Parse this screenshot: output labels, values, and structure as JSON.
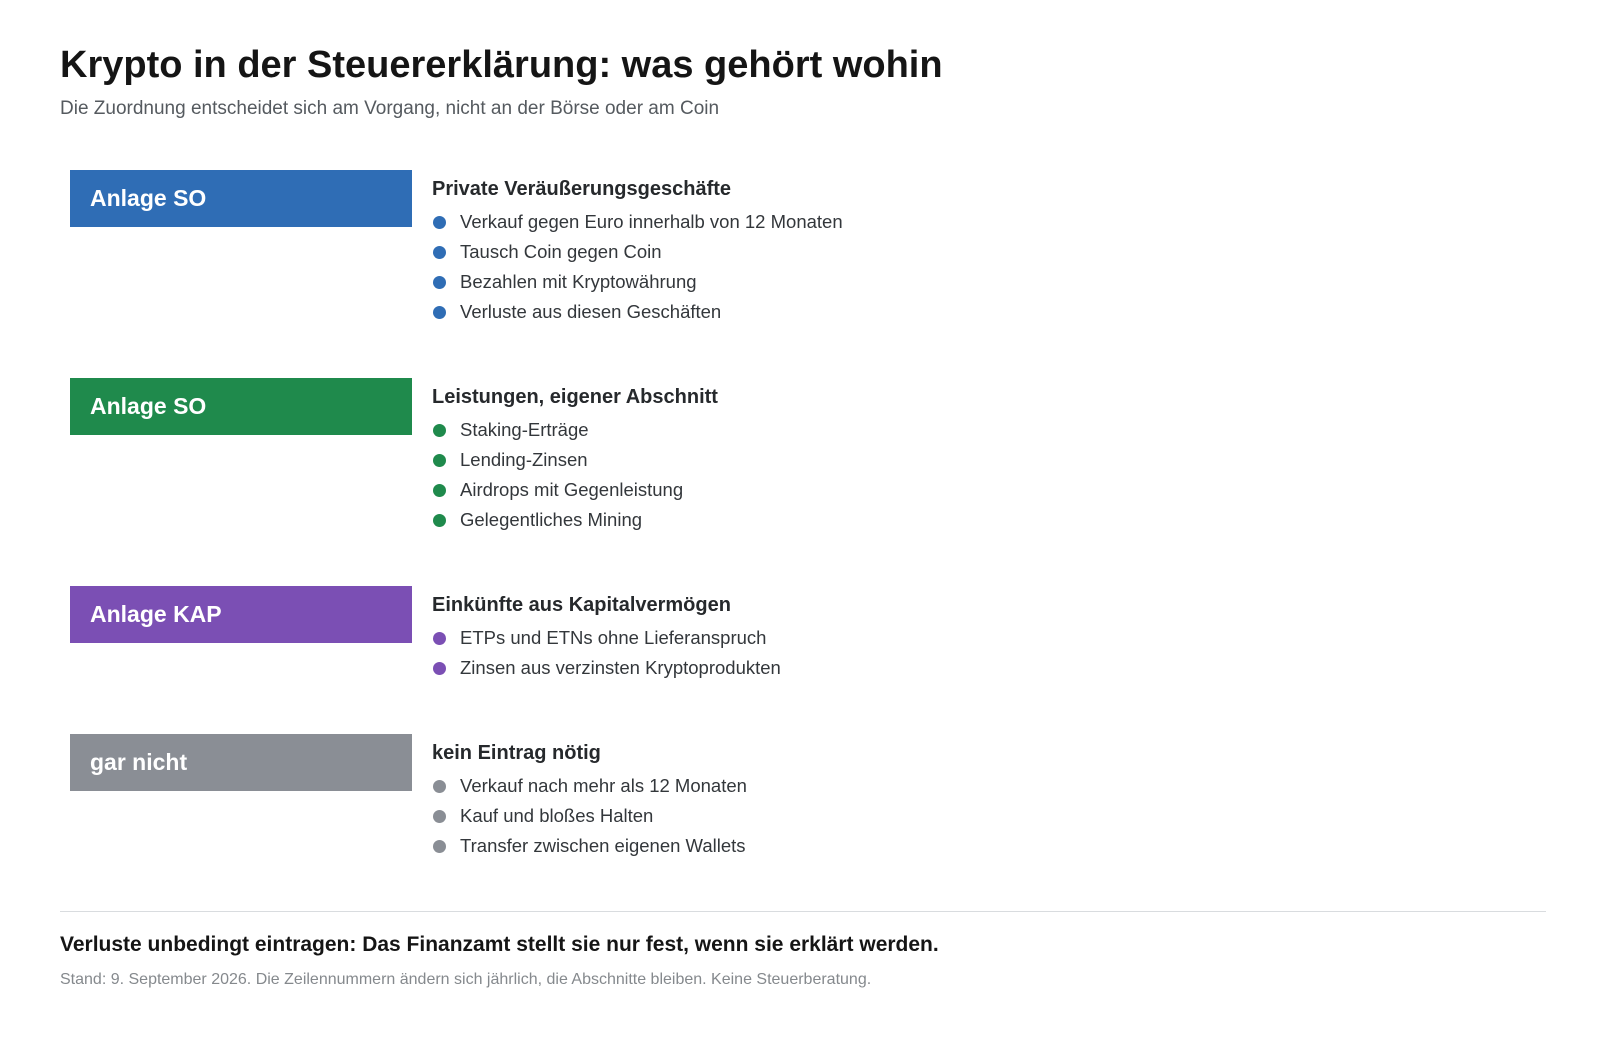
{
  "header": {
    "title": "Krypto in der Steuererklärung: was gehört wohin",
    "subtitle": "Die Zuordnung entscheidet sich am Vorgang, nicht an der Börse oder am Coin"
  },
  "groups": [
    {
      "badge": "Anlage SO",
      "color": "#2f6db5",
      "heading": "Private Veräußerungsgeschäfte",
      "items": [
        "Verkauf gegen Euro innerhalb von 12 Monaten",
        "Tausch Coin gegen Coin",
        "Bezahlen mit Kryptowährung",
        "Verluste aus diesen Geschäften"
      ]
    },
    {
      "badge": "Anlage SO",
      "color": "#1f8a4c",
      "heading": "Leistungen, eigener Abschnitt",
      "items": [
        "Staking-Erträge",
        "Lending-Zinsen",
        "Airdrops mit Gegenleistung",
        "Gelegentliches Mining"
      ]
    },
    {
      "badge": "Anlage KAP",
      "color": "#7b4fb4",
      "heading": "Einkünfte aus Kapitalvermögen",
      "items": [
        "ETPs und ETNs ohne Lieferanspruch",
        "Zinsen aus verzinsten Kryptoprodukten"
      ]
    },
    {
      "badge": "gar nicht",
      "color": "#8a8e95",
      "heading": "kein Eintrag nötig",
      "items": [
        "Verkauf nach mehr als 12 Monaten",
        "Kauf und bloßes Halten",
        "Transfer zwischen eigenen Wallets"
      ]
    }
  ],
  "footer": {
    "note": "Verluste unbedingt eintragen: Das Finanzamt stellt sie nur fest, wenn sie erklärt werden.",
    "stand": "Stand: 9. September 2026. Die Zeilennummern ändern sich jährlich, die Abschnitte bleiben. Keine Steuerberatung."
  }
}
